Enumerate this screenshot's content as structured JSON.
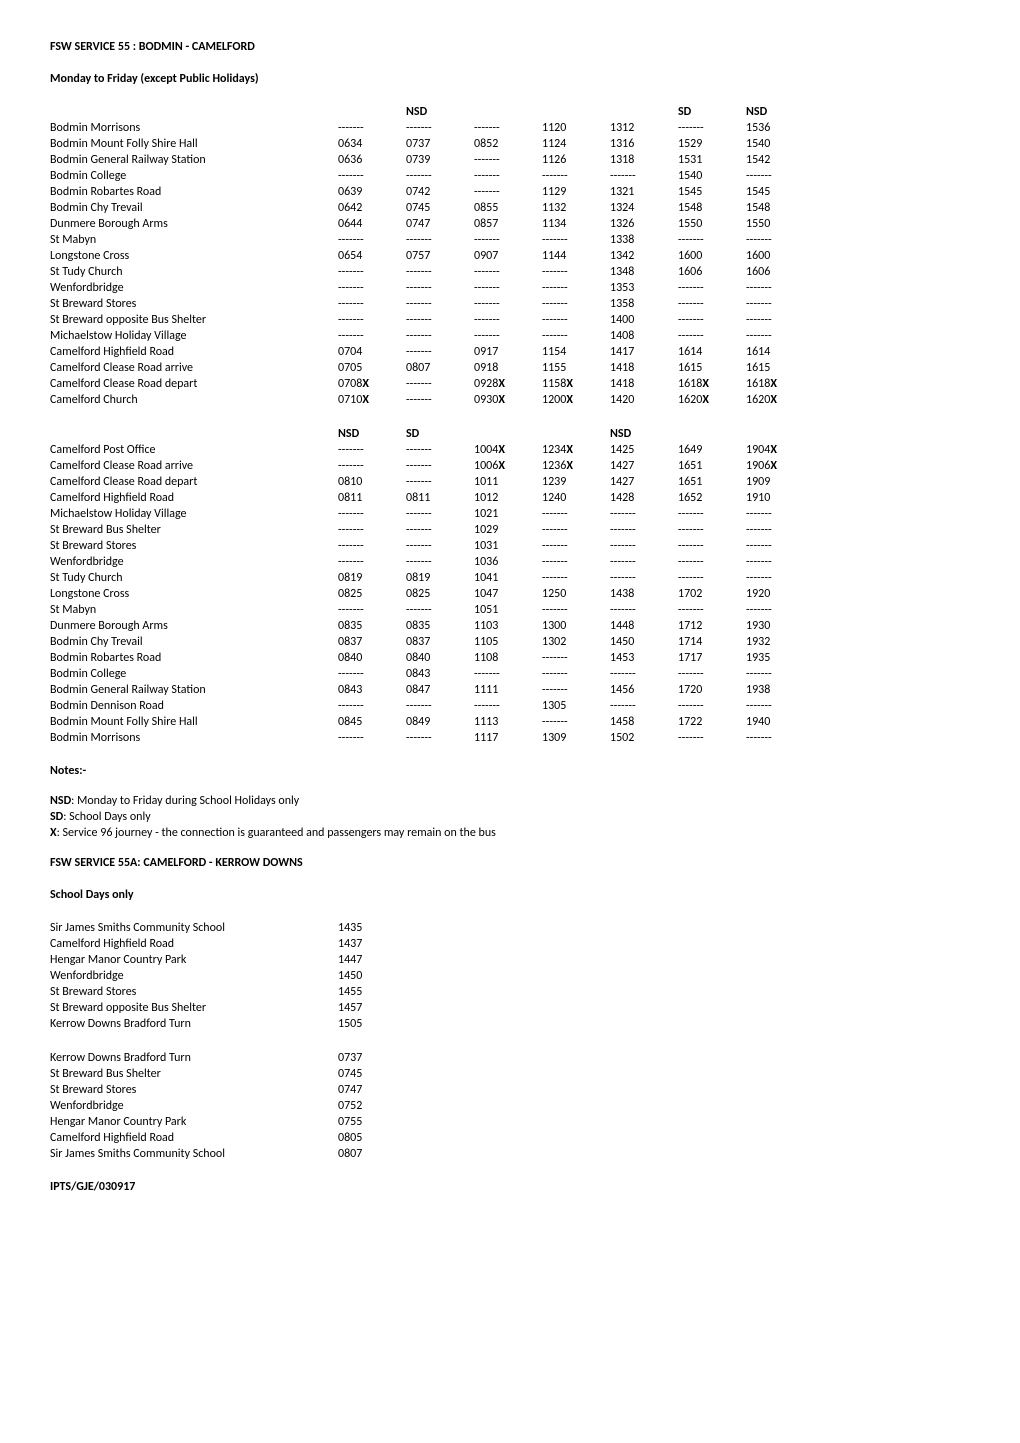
{
  "title1": "FSW SERVICE 55 : BODMIN - CAMELFORD",
  "subtitle1": "Monday to Friday (except Public Holidays)",
  "outbound": {
    "headers": [
      "",
      "NSD",
      "",
      "",
      "",
      "SD",
      "NSD"
    ],
    "rows": [
      {
        "stop": "Bodmin Morrisons",
        "c": [
          "-------",
          "-------",
          "-------",
          "1120",
          "1312",
          "-------",
          "1536"
        ]
      },
      {
        "stop": "Bodmin Mount Folly Shire Hall",
        "c": [
          "0634",
          "0737",
          "0852",
          "1124",
          "1316",
          "1529",
          "1540"
        ]
      },
      {
        "stop": "Bodmin General Railway Station",
        "c": [
          "0636",
          "0739",
          "-------",
          "1126",
          "1318",
          "1531",
          "1542"
        ]
      },
      {
        "stop": "Bodmin College",
        "c": [
          "-------",
          "-------",
          "-------",
          "-------",
          "-------",
          "1540",
          "-------"
        ]
      },
      {
        "stop": "Bodmin Robartes Road",
        "c": [
          "0639",
          "0742",
          "-------",
          "1129",
          "1321",
          "1545",
          "1545"
        ]
      },
      {
        "stop": "Bodmin Chy Trevail",
        "c": [
          "0642",
          "0745",
          "0855",
          "1132",
          "1324",
          "1548",
          "1548"
        ]
      },
      {
        "stop": "Dunmere Borough Arms",
        "c": [
          "0644",
          "0747",
          "0857",
          "1134",
          "1326",
          "1550",
          "1550"
        ]
      },
      {
        "stop": "St Mabyn",
        "c": [
          "-------",
          "-------",
          "-------",
          "-------",
          "1338",
          "-------",
          "-------"
        ]
      },
      {
        "stop": "Longstone Cross",
        "c": [
          "0654",
          "0757",
          "0907",
          "1144",
          "1342",
          "1600",
          "1600"
        ]
      },
      {
        "stop": "St Tudy Church",
        "c": [
          "-------",
          "-------",
          "-------",
          "-------",
          "1348",
          "1606",
          "1606"
        ]
      },
      {
        "stop": "Wenfordbridge",
        "c": [
          "-------",
          "-------",
          "-------",
          "-------",
          "1353",
          "-------",
          "-------"
        ]
      },
      {
        "stop": "St Breward Stores",
        "c": [
          "-------",
          "-------",
          "-------",
          "-------",
          "1358",
          "-------",
          "-------"
        ]
      },
      {
        "stop": "St Breward opposite Bus Shelter",
        "c": [
          "-------",
          "-------",
          "-------",
          "-------",
          "1400",
          "-------",
          "-------"
        ]
      },
      {
        "stop": "Michaelstow Holiday Village",
        "c": [
          "-------",
          "-------",
          "-------",
          "-------",
          "1408",
          "-------",
          "-------"
        ]
      },
      {
        "stop": "Camelford Highfield Road",
        "c": [
          "0704",
          "-------",
          "0917",
          "1154",
          "1417",
          "1614",
          "1614"
        ]
      },
      {
        "stop": "Camelford Clease Road arrive",
        "c": [
          "0705",
          "0807",
          "0918",
          "1155",
          "1418",
          "1615",
          "1615"
        ]
      },
      {
        "stop": "Camelford Clease Road depart",
        "c": [
          "0708X",
          "-------",
          "0928X",
          "1158X",
          "1418",
          "1618X",
          "1618X"
        ]
      },
      {
        "stop": "Camelford Church",
        "c": [
          "0710X",
          "-------",
          "0930X",
          "1200X",
          "1420",
          "1620X",
          "1620X"
        ]
      }
    ]
  },
  "return": {
    "headers": [
      "NSD",
      "SD",
      "",
      "",
      "NSD",
      "",
      ""
    ],
    "rows": [
      {
        "stop": "Camelford Post Office",
        "c": [
          "-------",
          "-------",
          "1004X",
          "1234X",
          "1425",
          "1649",
          "1904X"
        ]
      },
      {
        "stop": "Camelford Clease Road arrive",
        "c": [
          "-------",
          "-------",
          "1006X",
          "1236X",
          "1427",
          "1651",
          "1906X"
        ]
      },
      {
        "stop": "Camelford Clease Road depart",
        "c": [
          "0810",
          "-------",
          "1011",
          "1239",
          "1427",
          "1651",
          "1909"
        ]
      },
      {
        "stop": "Camelford Highfield Road",
        "c": [
          "0811",
          "0811",
          "1012",
          "1240",
          "1428",
          "1652",
          "1910"
        ]
      },
      {
        "stop": "Michaelstow Holiday Village",
        "c": [
          "-------",
          "-------",
          "1021",
          "-------",
          "-------",
          "-------",
          "-------"
        ]
      },
      {
        "stop": "St Breward Bus Shelter",
        "c": [
          "-------",
          "-------",
          "1029",
          "-------",
          "-------",
          "-------",
          "-------"
        ]
      },
      {
        "stop": "St Breward Stores",
        "c": [
          "-------",
          "-------",
          "1031",
          "-------",
          "-------",
          "-------",
          "-------"
        ]
      },
      {
        "stop": "Wenfordbridge",
        "c": [
          "-------",
          "-------",
          "1036",
          "-------",
          "-------",
          "-------",
          "-------"
        ]
      },
      {
        "stop": "St Tudy Church",
        "c": [
          "0819",
          "0819",
          "1041",
          "-------",
          "-------",
          "-------",
          "-------"
        ]
      },
      {
        "stop": "Longstone Cross",
        "c": [
          "0825",
          "0825",
          "1047",
          "1250",
          "1438",
          "1702",
          "1920"
        ]
      },
      {
        "stop": "St Mabyn",
        "c": [
          "-------",
          "-------",
          "1051",
          "-------",
          "-------",
          "-------",
          "-------"
        ]
      },
      {
        "stop": "Dunmere Borough Arms",
        "c": [
          "0835",
          "0835",
          "1103",
          "1300",
          "1448",
          "1712",
          "1930"
        ]
      },
      {
        "stop": "Bodmin Chy Trevail",
        "c": [
          "0837",
          "0837",
          "1105",
          "1302",
          "1450",
          "1714",
          "1932"
        ]
      },
      {
        "stop": "Bodmin Robartes Road",
        "c": [
          "0840",
          "0840",
          "1108",
          "-------",
          "1453",
          "1717",
          "1935"
        ]
      },
      {
        "stop": "Bodmin College",
        "c": [
          "-------",
          "0843",
          "-------",
          "-------",
          "-------",
          "-------",
          "-------"
        ]
      },
      {
        "stop": "Bodmin General Railway Station",
        "c": [
          "0843",
          "0847",
          "1111",
          "-------",
          "1456",
          "1720",
          "1938"
        ]
      },
      {
        "stop": "Bodmin Dennison Road",
        "c": [
          "-------",
          "-------",
          "-------",
          "1305",
          "-------",
          "-------",
          "-------"
        ]
      },
      {
        "stop": "Bodmin Mount Folly Shire Hall",
        "c": [
          "0845",
          "0849",
          "1113",
          "-------",
          "1458",
          "1722",
          "1940"
        ]
      },
      {
        "stop": "Bodmin Morrisons",
        "c": [
          "-------",
          "-------",
          "1117",
          "1309",
          "1502",
          "-------",
          "-------"
        ]
      }
    ]
  },
  "notes": {
    "heading": "Notes:-",
    "lines": [
      {
        "b": "NSD",
        "t": ": Monday to Friday during School Holidays only"
      },
      {
        "b": "SD",
        "t": ": School Days only"
      },
      {
        "b": "X",
        "t": ": Service 96 journey - the connection is guaranteed and passengers may remain on the bus"
      }
    ]
  },
  "title2": "FSW SERVICE 55A: CAMELFORD - KERROW DOWNS",
  "subtitle2": "School Days only",
  "table55a_out": [
    {
      "stop": "Sir James Smiths Community School",
      "t": "1435"
    },
    {
      "stop": "Camelford Highfield Road",
      "t": "1437"
    },
    {
      "stop": "Hengar Manor Country Park",
      "t": "1447"
    },
    {
      "stop": "Wenfordbridge",
      "t": "1450"
    },
    {
      "stop": "St Breward Stores",
      "t": "1455"
    },
    {
      "stop": "St Breward opposite Bus Shelter",
      "t": "1457"
    },
    {
      "stop": "Kerrow Downs Bradford Turn",
      "t": "1505"
    }
  ],
  "table55a_ret": [
    {
      "stop": "Kerrow Downs Bradford Turn",
      "t": "0737"
    },
    {
      "stop": "St Breward Bus Shelter",
      "t": "0745"
    },
    {
      "stop": "St Breward Stores",
      "t": "0747"
    },
    {
      "stop": "Wenfordbridge",
      "t": "0752"
    },
    {
      "stop": "Hengar Manor Country Park",
      "t": "0755"
    },
    {
      "stop": "Camelford Highfield Road",
      "t": "0805"
    },
    {
      "stop": "Sir James Smiths Community School",
      "t": "0807"
    }
  ],
  "footer": "IPTS/GJE/030917"
}
